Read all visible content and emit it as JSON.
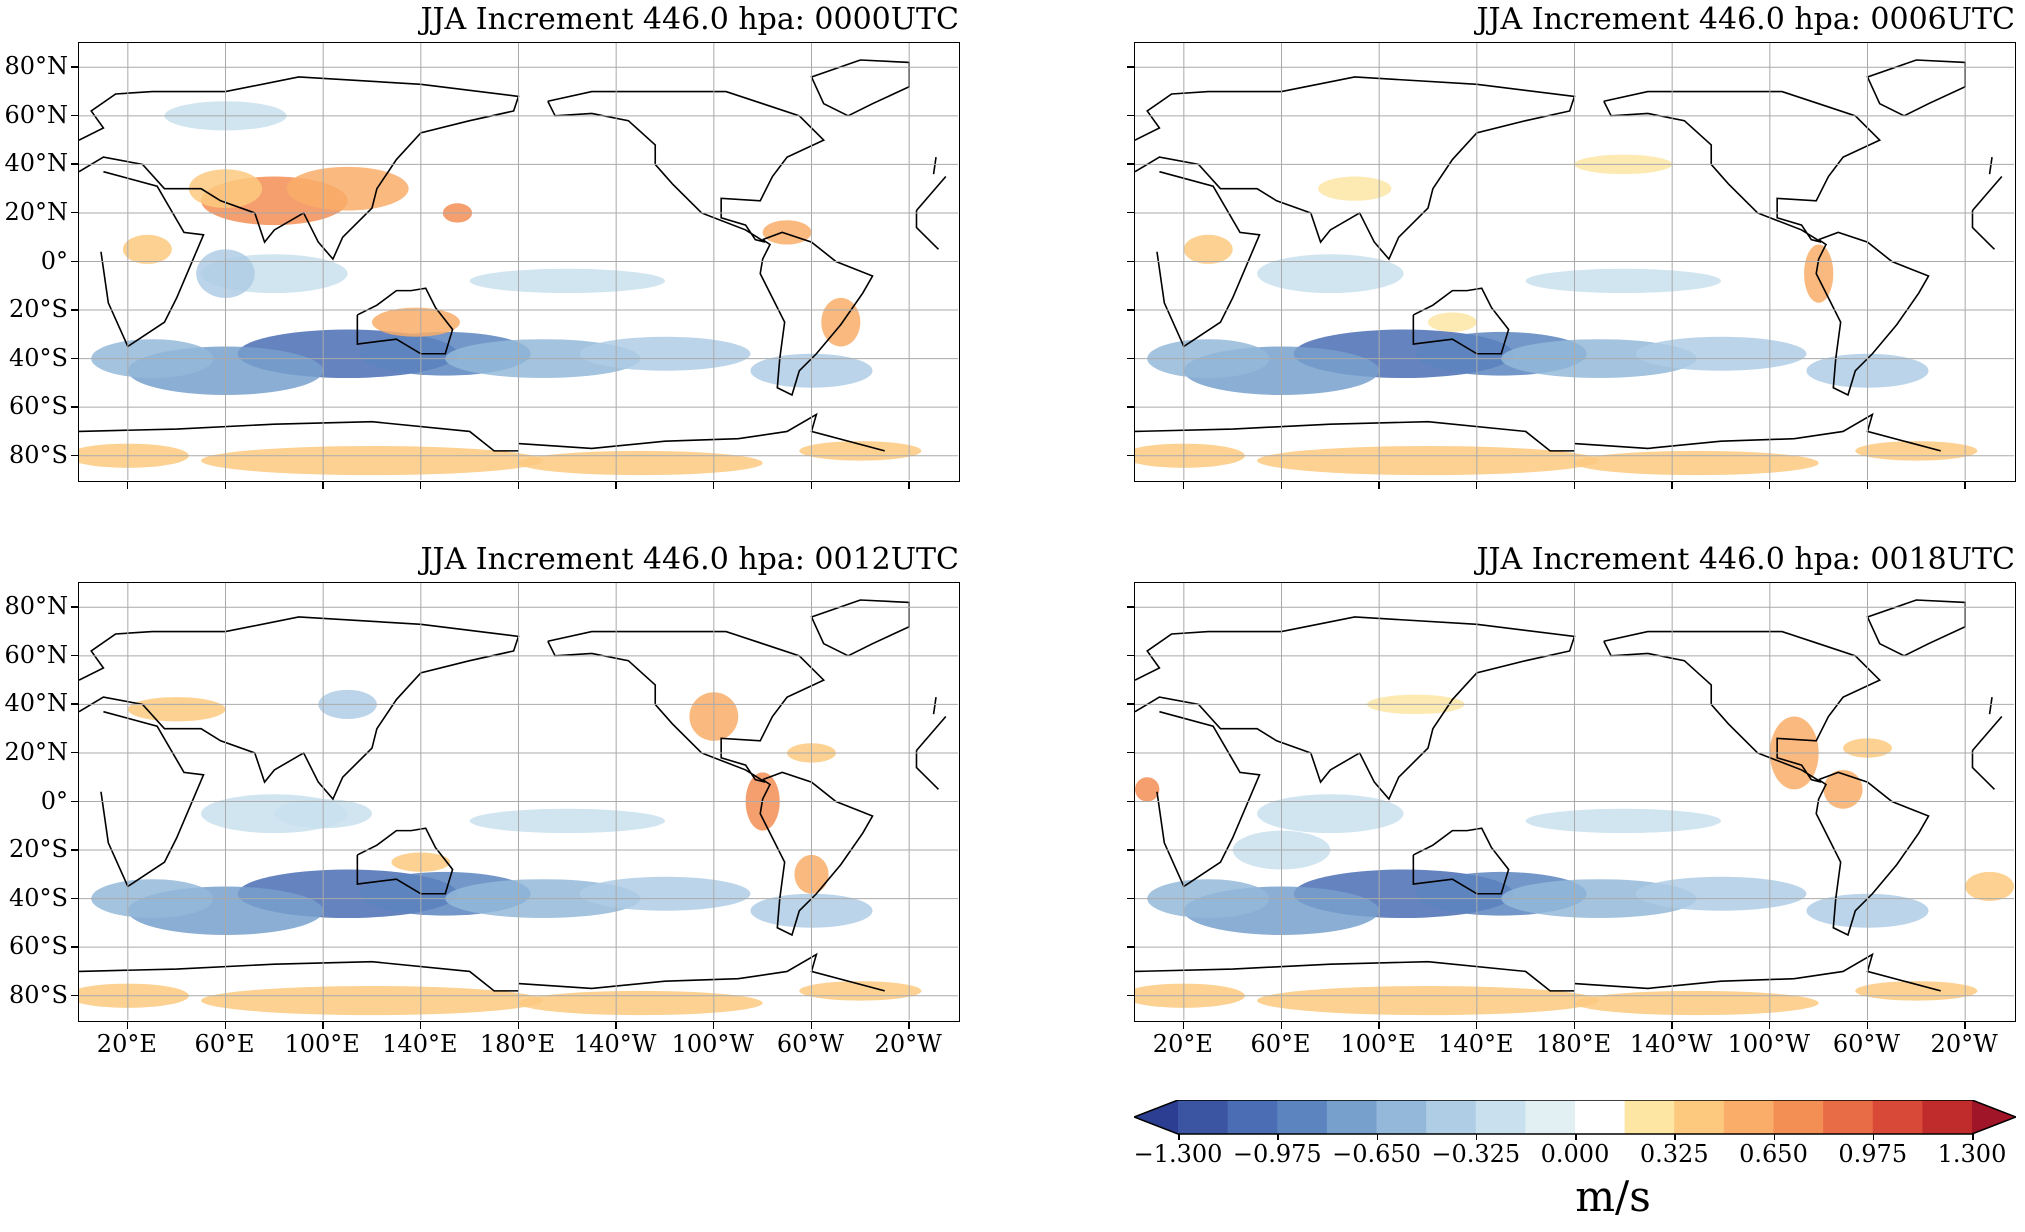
{
  "panels": [
    {
      "title": "JJA Increment 446.0 hpa: 0000UTC",
      "utc": "0000"
    },
    {
      "title": "JJA Increment 446.0 hpa: 0006UTC",
      "utc": "0006"
    },
    {
      "title": "JJA Increment 446.0 hpa: 0012UTC",
      "utc": "0012"
    },
    {
      "title": "JJA Increment 446.0 hpa: 0018UTC",
      "utc": "0018"
    }
  ],
  "lat_labels": [
    "80°N",
    "60°N",
    "40°N",
    "20°N",
    "0°",
    "20°S",
    "40°S",
    "60°S",
    "80°S"
  ],
  "lon_labels": [
    "20°E",
    "60°E",
    "100°E",
    "140°E",
    "180°E",
    "140°W",
    "100°W",
    "60°W",
    "20°W"
  ],
  "colorbar": {
    "tick_labels": [
      "−1.300",
      "−0.975",
      "−0.650",
      "−0.325",
      "0.000",
      "0.325",
      "0.650",
      "0.975",
      "1.300"
    ],
    "unit": "m/s",
    "range": [
      -1.3,
      1.3
    ],
    "colors": [
      "#2c3e92",
      "#3b55a3",
      "#4a6db3",
      "#5c85c0",
      "#77a0cc",
      "#93b8d9",
      "#afcde5",
      "#c9e0ee",
      "#e2eff3",
      "#ffffff",
      "#fde5a4",
      "#fcc97f",
      "#f9ad68",
      "#f38e55",
      "#e86c45",
      "#d84a37",
      "#c02c2c",
      "#a01528"
    ]
  }
}
